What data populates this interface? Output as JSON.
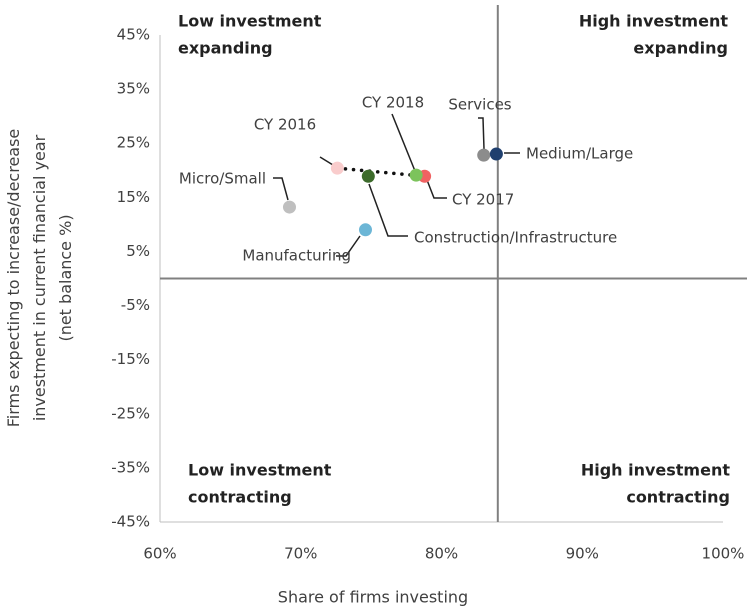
{
  "chart_data": {
    "type": "scatter",
    "x_label": "Share of firms investing",
    "y_label": [
      "Firms expecting to increase/decrease",
      "investment in current financial year",
      "(net balance %)"
    ],
    "xlim": [
      60,
      100
    ],
    "xticks": [
      {
        "value": 60,
        "label": "60%"
      },
      {
        "value": 70,
        "label": "70%"
      },
      {
        "value": 80,
        "label": "80%"
      },
      {
        "value": 90,
        "label": "90%"
      },
      {
        "value": 100,
        "label": "100%"
      }
    ],
    "ylim": [
      -45,
      45
    ],
    "yticks": [
      {
        "value": 45,
        "label": "45%"
      },
      {
        "value": 35,
        "label": "35%"
      },
      {
        "value": 25,
        "label": "25%"
      },
      {
        "value": 15,
        "label": "15%"
      },
      {
        "value": 5,
        "label": "5%"
      },
      {
        "value": -5,
        "label": "-5%"
      },
      {
        "value": -15,
        "label": "-15%"
      },
      {
        "value": -25,
        "label": "-25%"
      },
      {
        "value": -35,
        "label": "-35%"
      },
      {
        "value": -45,
        "label": "-45%"
      }
    ],
    "dividers": {
      "x": 84,
      "y": 0
    },
    "quadrant_labels": [
      [
        "Low investment",
        "expanding"
      ],
      [
        "High investment",
        "expanding"
      ],
      [
        "Low investment",
        "contracting"
      ],
      [
        "High investment",
        "contracting"
      ]
    ],
    "points": [
      {
        "name": "CY 2016",
        "x": 72.6,
        "y": 20.4,
        "color": "#f9cccc"
      },
      {
        "name": "CY 2017",
        "x": 78.8,
        "y": 18.9,
        "color": "#f06262"
      },
      {
        "name": "CY 2018",
        "x": 78.2,
        "y": 19.1,
        "color": "#7cc35c"
      },
      {
        "name": "Micro/Small",
        "x": 69.2,
        "y": 13.2,
        "color": "#bfbfbf"
      },
      {
        "name": "Manufacturing",
        "x": 74.6,
        "y": 9.0,
        "color": "#6cb6d6"
      },
      {
        "name": "Construction/Infrastructure",
        "x": 74.8,
        "y": 18.9,
        "color": "#3d6b2b"
      },
      {
        "name": "Services",
        "x": 83.0,
        "y": 22.8,
        "color": "#8c8c8c"
      },
      {
        "name": "Medium/Large",
        "x": 83.9,
        "y": 23.0,
        "color": "#1f3f6e"
      }
    ]
  }
}
